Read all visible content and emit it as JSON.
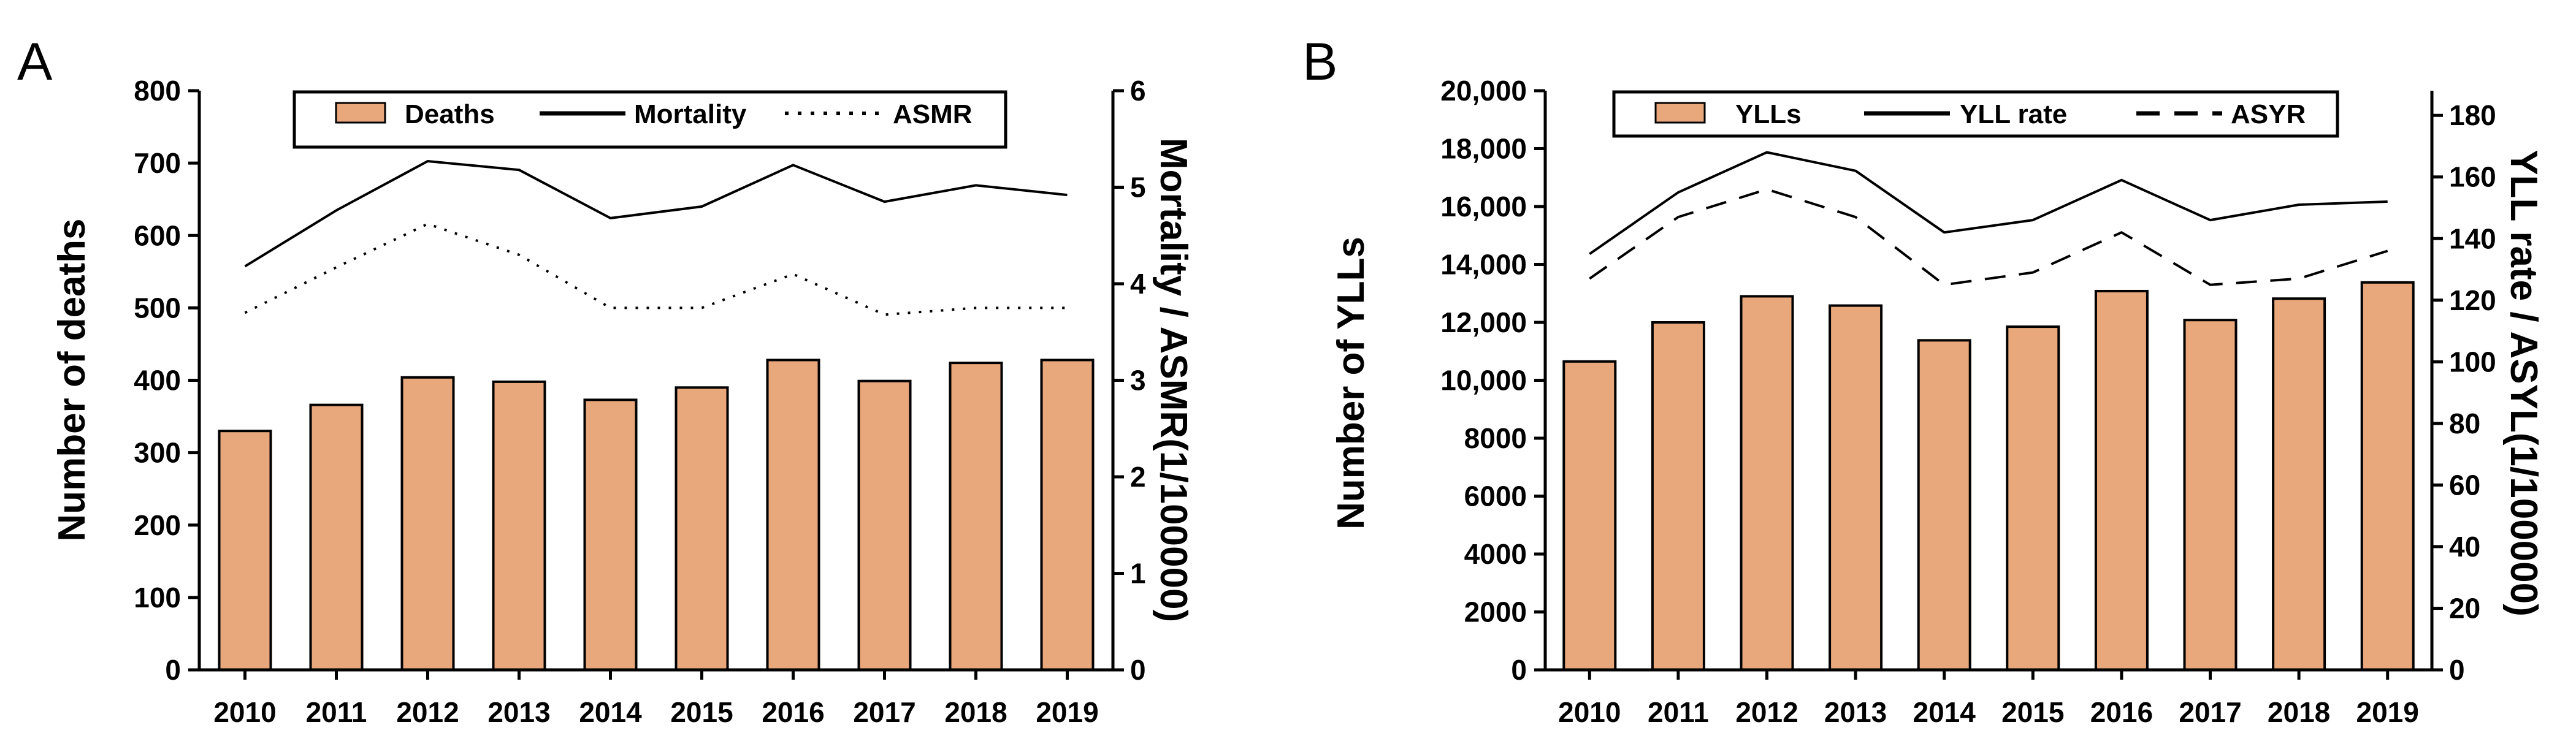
{
  "chart_data": [
    {
      "panel_label": "A",
      "type": "bar",
      "categories": [
        "2010",
        "2011",
        "2012",
        "2013",
        "2014",
        "2015",
        "2016",
        "2017",
        "2018",
        "2019"
      ],
      "bar_series": {
        "name": "Deaths",
        "values": [
          330,
          366,
          404,
          398,
          373,
          390,
          428,
          399,
          424,
          428
        ]
      },
      "line_series": [
        {
          "name": "Mortality",
          "style": "solid",
          "values": [
            4.18,
            4.76,
            5.27,
            5.18,
            4.68,
            4.8,
            5.23,
            4.85,
            5.02,
            4.92
          ]
        },
        {
          "name": "ASMR",
          "style": "dotted",
          "values": [
            3.7,
            4.17,
            4.62,
            4.3,
            3.75,
            3.75,
            4.1,
            3.68,
            3.75,
            3.75
          ]
        }
      ],
      "left_axis": {
        "label": "Number of deaths",
        "ylim": [
          0,
          800
        ],
        "ticks": [
          "0",
          "100",
          "200",
          "300",
          "400",
          "500",
          "600",
          "700",
          "800"
        ]
      },
      "right_axis": {
        "label": "Mortality / ASMR(1/100000)",
        "ylim": [
          0,
          6
        ],
        "ticks": [
          "0",
          "1",
          "2",
          "3",
          "4",
          "5",
          "6"
        ]
      },
      "legend": {
        "position": "top",
        "entries": [
          "Deaths",
          "Mortality",
          "ASMR"
        ]
      },
      "colors": {
        "bar": "#E8A87C",
        "stroke": "#000000"
      }
    },
    {
      "panel_label": "B",
      "type": "bar",
      "categories": [
        "2010",
        "2011",
        "2012",
        "2013",
        "2014",
        "2015",
        "2016",
        "2017",
        "2018",
        "2019"
      ],
      "bar_series": {
        "name": "YLLs",
        "values": [
          10650,
          12000,
          12900,
          12580,
          11380,
          11850,
          13080,
          12080,
          12820,
          13380
        ]
      },
      "line_series": [
        {
          "name": "YLL rate",
          "style": "solid",
          "values": [
            135,
            155,
            168,
            162,
            142,
            146,
            159,
            146,
            151,
            152
          ]
        },
        {
          "name": "ASYR",
          "style": "dashed",
          "values": [
            127,
            147,
            156,
            147,
            125,
            129,
            142,
            125,
            127,
            136
          ]
        }
      ],
      "left_axis": {
        "label": "Number of YLLs",
        "ylim": [
          0,
          20000
        ],
        "ticks": [
          "0",
          "2000",
          "4000",
          "6000",
          "8000",
          "10,000",
          "12,000",
          "14,000",
          "16,000",
          "18,000",
          "20,000"
        ]
      },
      "right_axis": {
        "label": "YLL rate / ASYL(1/100000)",
        "ylim": [
          0,
          188
        ],
        "ticks": [
          "0",
          "20",
          "40",
          "60",
          "80",
          "100",
          "120",
          "140",
          "160",
          "180"
        ],
        "tick_values": [
          0,
          20,
          40,
          60,
          80,
          100,
          120,
          140,
          160,
          180
        ]
      },
      "legend": {
        "position": "top",
        "entries": [
          "YLLs",
          "YLL rate",
          "ASYR"
        ]
      },
      "colors": {
        "bar": "#E8A87C",
        "stroke": "#000000"
      }
    }
  ]
}
